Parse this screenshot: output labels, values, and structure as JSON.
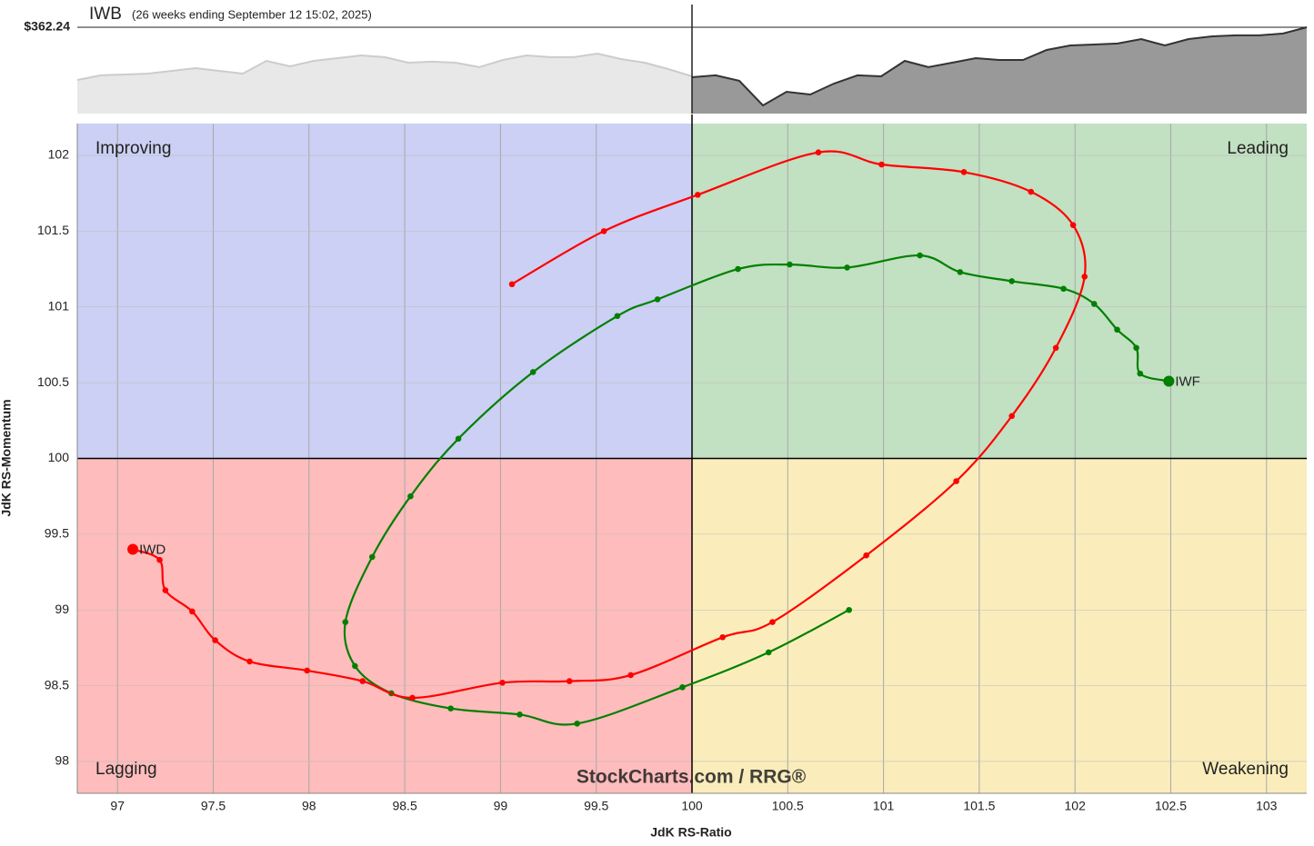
{
  "chart_data": [
    {
      "type": "area",
      "title": "IWB",
      "subtitle": "(26 weeks ending September 12 15:02, 2025)",
      "price_line": {
        "value": 362.24,
        "label": "$362.24"
      },
      "ylim": [
        280,
        370
      ],
      "series": [
        {
          "color": "#e8e8e8",
          "line_color": "#cccccc",
          "values": [
            312.0,
            316.4,
            317.2,
            318.1,
            320.7,
            323.3,
            320.7,
            318.1,
            330.2,
            325.0,
            330.2,
            332.8,
            335.4,
            333.7,
            328.5,
            329.4,
            328.5,
            324.2,
            331.1,
            335.4,
            333.7,
            333.7,
            337.1,
            331.9,
            328.5,
            322.4,
            315.5
          ]
        },
        {
          "color": "#999999",
          "line_color": "#333333",
          "values": [
            314.6,
            316.4,
            311.2,
            287.8,
            300.8,
            298.2,
            308.6,
            316.4,
            315.5,
            330.2,
            324.2,
            328.5,
            332.8,
            331.1,
            331.1,
            340.6,
            344.9,
            345.8,
            346.7,
            351.0,
            344.9,
            351.0,
            353.6,
            354.5,
            354.5,
            356.2,
            362.24
          ]
        }
      ]
    },
    {
      "type": "line",
      "x_label": "JdK RS-Ratio",
      "y_label": "JdK RS-Momentum",
      "xlim": [
        96.79,
        103.21
      ],
      "ylim": [
        97.79,
        102.21
      ],
      "xticks": [
        97,
        97.5,
        98,
        98.5,
        99,
        99.5,
        100,
        100.5,
        101,
        101.5,
        102,
        102.5,
        103
      ],
      "yticks": [
        98,
        98.5,
        99,
        99.5,
        100,
        100.5,
        101,
        101.5,
        102
      ],
      "grid": true,
      "center": [
        100,
        100
      ],
      "quadrants": [
        {
          "label": "Improving",
          "position": "top-left",
          "color": "#cbd0f4",
          "text_color": "#3a3ad0"
        },
        {
          "label": "Leading",
          "position": "top-right",
          "color": "#c2e0c2",
          "text_color": "#1a8a1a"
        },
        {
          "label": "Lagging",
          "position": "bottom-left",
          "color": "#ffbcbc",
          "text_color": "#ee1111"
        },
        {
          "label": "Weakening",
          "position": "bottom-right",
          "color": "#faedbb",
          "text_color": "#e8b010"
        }
      ],
      "watermark": "StockCharts.com / RRG®",
      "series": [
        {
          "name": "IWF",
          "color": "#008000",
          "x": [
            100.82,
            100.4,
            99.95,
            99.4,
            99.1,
            98.74,
            98.43,
            98.24,
            98.19,
            98.33,
            98.53,
            98.78,
            99.17,
            99.61,
            99.82,
            100.24,
            100.51,
            100.81,
            101.19,
            101.4,
            101.67,
            101.94,
            102.1,
            102.22,
            102.32,
            102.34,
            102.49
          ],
          "y": [
            99.0,
            98.72,
            98.49,
            98.25,
            98.31,
            98.35,
            98.45,
            98.63,
            98.92,
            99.35,
            99.75,
            100.13,
            100.57,
            100.94,
            101.05,
            101.25,
            101.28,
            101.26,
            101.34,
            101.23,
            101.17,
            101.12,
            101.02,
            100.85,
            100.73,
            100.56,
            100.51
          ]
        },
        {
          "name": "IWD",
          "color": "#ff0000",
          "x": [
            99.06,
            99.54,
            100.03,
            100.66,
            100.99,
            101.42,
            101.77,
            101.99,
            102.05,
            101.9,
            101.67,
            101.38,
            100.91,
            100.42,
            100.16,
            99.68,
            99.36,
            99.01,
            98.54,
            98.28,
            97.99,
            97.69,
            97.51,
            97.39,
            97.25,
            97.22,
            97.08
          ],
          "y": [
            101.15,
            101.5,
            101.74,
            102.02,
            101.94,
            101.89,
            101.76,
            101.54,
            101.2,
            100.73,
            100.28,
            99.85,
            99.36,
            98.92,
            98.82,
            98.57,
            98.53,
            98.52,
            98.42,
            98.53,
            98.6,
            98.66,
            98.8,
            98.99,
            99.13,
            99.33,
            99.4
          ]
        }
      ]
    }
  ]
}
